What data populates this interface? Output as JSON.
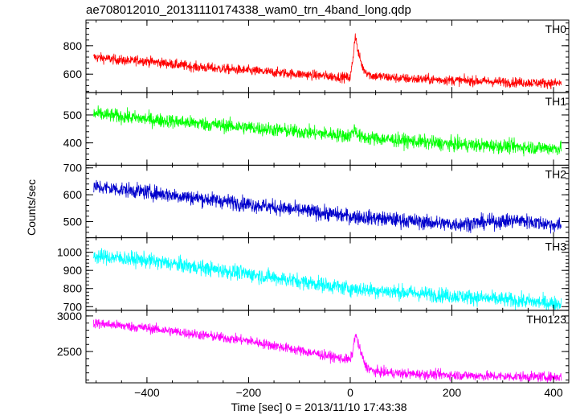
{
  "title": "ae708012010_20131110174338_wam0_trn_4band_long.qdp",
  "xlabel": "Time [sec] 0 = 2013/11/10 17:43:38",
  "ylabel": "Counts/sec",
  "chart_data": {
    "type": "line",
    "title": "ae708012010_20131110174338_wam0_trn_4band_long.qdp",
    "xlabel": "Time [sec] 0 = 2013/11/10 17:43:38",
    "ylabel": "Counts/sec",
    "xlim": [
      -520,
      430
    ],
    "xticks": [
      -400,
      -200,
      0,
      200,
      400
    ],
    "grid": false,
    "panels": [
      {
        "name": "TH0",
        "color": "#ff0000",
        "ylim": [
          470,
          980
        ],
        "yticks": [
          600,
          800
        ],
        "trend_x": [
          -505,
          -430,
          -420,
          -300,
          -100,
          0,
          5,
          10,
          15,
          25,
          40,
          100,
          300,
          415
        ],
        "trend_y": [
          720,
          690,
          700,
          650,
          600,
          575,
          700,
          880,
          760,
          640,
          590,
          570,
          545,
          535
        ],
        "noise": 25
      },
      {
        "name": "TH1",
        "color": "#00ff00",
        "ylim": [
          320,
          580
        ],
        "yticks": [
          400,
          500
        ],
        "trend_x": [
          -505,
          -400,
          -200,
          0,
          8,
          12,
          20,
          200,
          415
        ],
        "trend_y": [
          505,
          485,
          455,
          425,
          450,
          440,
          420,
          395,
          380
        ],
        "noise": 18
      },
      {
        "name": "TH2",
        "color": "#0000cc",
        "ylim": [
          440,
          710
        ],
        "yticks": [
          500,
          600,
          700
        ],
        "trend_x": [
          -505,
          -400,
          -200,
          0,
          200,
          330,
          415
        ],
        "trend_y": [
          630,
          610,
          565,
          520,
          490,
          505,
          485
        ],
        "noise": 20
      },
      {
        "name": "TH3",
        "color": "#00ffff",
        "ylim": [
          680,
          1080
        ],
        "yticks": [
          700,
          800,
          900,
          1000
        ],
        "trend_x": [
          -505,
          -400,
          -200,
          0,
          200,
          415
        ],
        "trend_y": [
          980,
          955,
          880,
          800,
          760,
          715
        ],
        "noise": 30
      },
      {
        "name": "TH0123",
        "color": "#ff00ff",
        "ylim": [
          2060,
          3080
        ],
        "yticks": [
          2500,
          3000
        ],
        "trend_x": [
          -505,
          -400,
          -200,
          0,
          5,
          10,
          18,
          30,
          45,
          100,
          300,
          415
        ],
        "trend_y": [
          2900,
          2830,
          2650,
          2380,
          2500,
          2750,
          2550,
          2300,
          2220,
          2190,
          2150,
          2140
        ],
        "noise": 50
      }
    ]
  }
}
